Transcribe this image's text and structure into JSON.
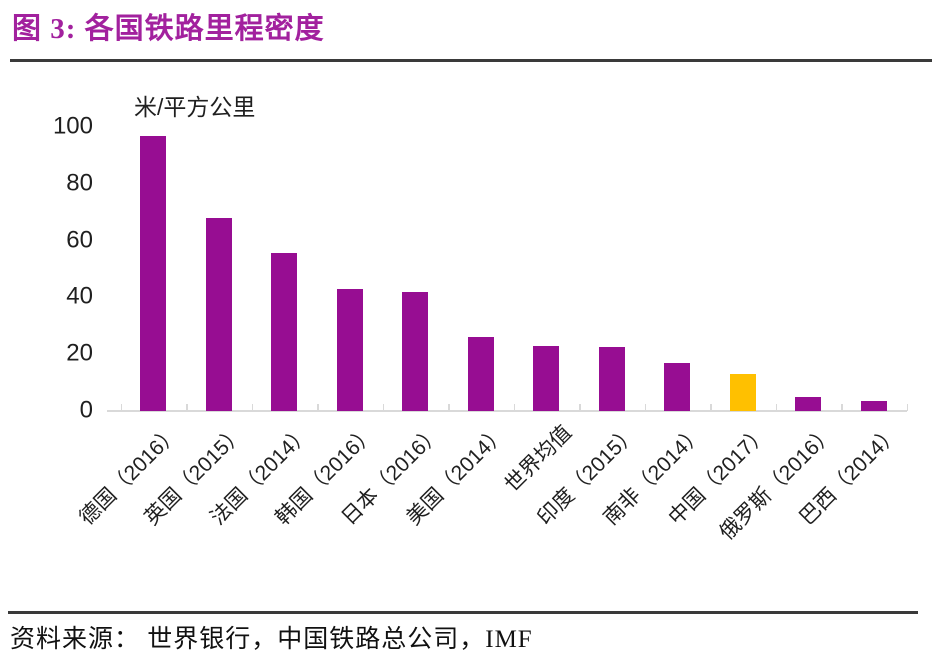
{
  "header": {
    "title": "图 3:  各国铁路里程密度",
    "title_color": "#A2219E"
  },
  "chart_data": {
    "type": "bar",
    "title": "各国铁路里程密度",
    "unit_label": "米/平方公里",
    "categories": [
      "德国（2016）",
      "英国（2015）",
      "法国（2014）",
      "韩国（2016）",
      "日本（2016）",
      "美国（2014）",
      "世界均值",
      "印度（2015）",
      "南非（2014）",
      "中国（2017）",
      "俄罗斯（2016）",
      "巴西（2014）"
    ],
    "values": [
      97,
      68,
      55.5,
      43,
      42,
      26,
      23,
      22.5,
      17,
      13,
      5,
      3.5
    ],
    "ylim": [
      0,
      100
    ],
    "y_ticks": [
      0,
      20,
      40,
      60,
      80,
      100
    ],
    "xlabel": "",
    "ylabel": "米/平方公里",
    "grid": false,
    "legend": false,
    "bar_color": "#970D92",
    "highlight_color": "#FFC000",
    "highlight_index": 9,
    "axis_color": "#D9D9D9"
  },
  "footer": {
    "source": "资料来源： 世界银行，中国铁路总公司，IMF"
  }
}
